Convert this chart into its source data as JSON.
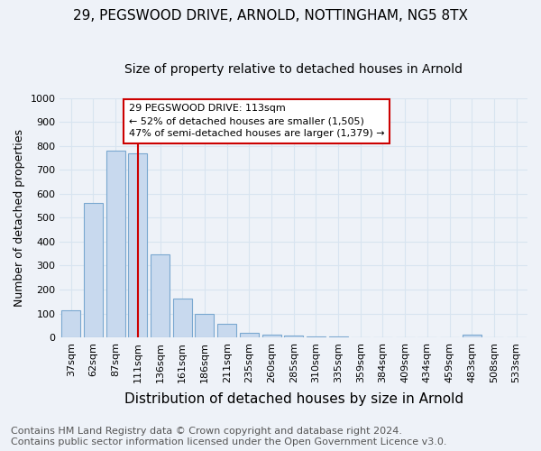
{
  "title": "29, PEGSWOOD DRIVE, ARNOLD, NOTTINGHAM, NG5 8TX",
  "subtitle": "Size of property relative to detached houses in Arnold",
  "xlabel": "Distribution of detached houses by size in Arnold",
  "ylabel": "Number of detached properties",
  "categories": [
    "37sqm",
    "62sqm",
    "87sqm",
    "111sqm",
    "136sqm",
    "161sqm",
    "186sqm",
    "211sqm",
    "235sqm",
    "260sqm",
    "285sqm",
    "310sqm",
    "335sqm",
    "359sqm",
    "384sqm",
    "409sqm",
    "434sqm",
    "459sqm",
    "483sqm",
    "508sqm",
    "533sqm"
  ],
  "values": [
    115,
    560,
    780,
    770,
    347,
    163,
    97,
    57,
    20,
    13,
    7,
    5,
    3,
    0,
    0,
    0,
    0,
    0,
    10,
    0,
    0
  ],
  "bar_color": "#c8d9ee",
  "bar_edge_color": "#7aa8d0",
  "vline_x_index": 3,
  "vline_color": "#cc0000",
  "annotation_text": "29 PEGSWOOD DRIVE: 113sqm\n← 52% of detached houses are smaller (1,505)\n47% of semi-detached houses are larger (1,379) →",
  "annotation_box_color": "#cc0000",
  "ylim": [
    0,
    1000
  ],
  "yticks": [
    0,
    100,
    200,
    300,
    400,
    500,
    600,
    700,
    800,
    900,
    1000
  ],
  "bg_color": "#eef2f8",
  "grid_color": "#d8e4f0",
  "footer_text": "Contains HM Land Registry data © Crown copyright and database right 2024.\nContains public sector information licensed under the Open Government Licence v3.0.",
  "title_fontsize": 11,
  "subtitle_fontsize": 10,
  "xlabel_fontsize": 11,
  "ylabel_fontsize": 9,
  "tick_fontsize": 8,
  "footer_fontsize": 8
}
